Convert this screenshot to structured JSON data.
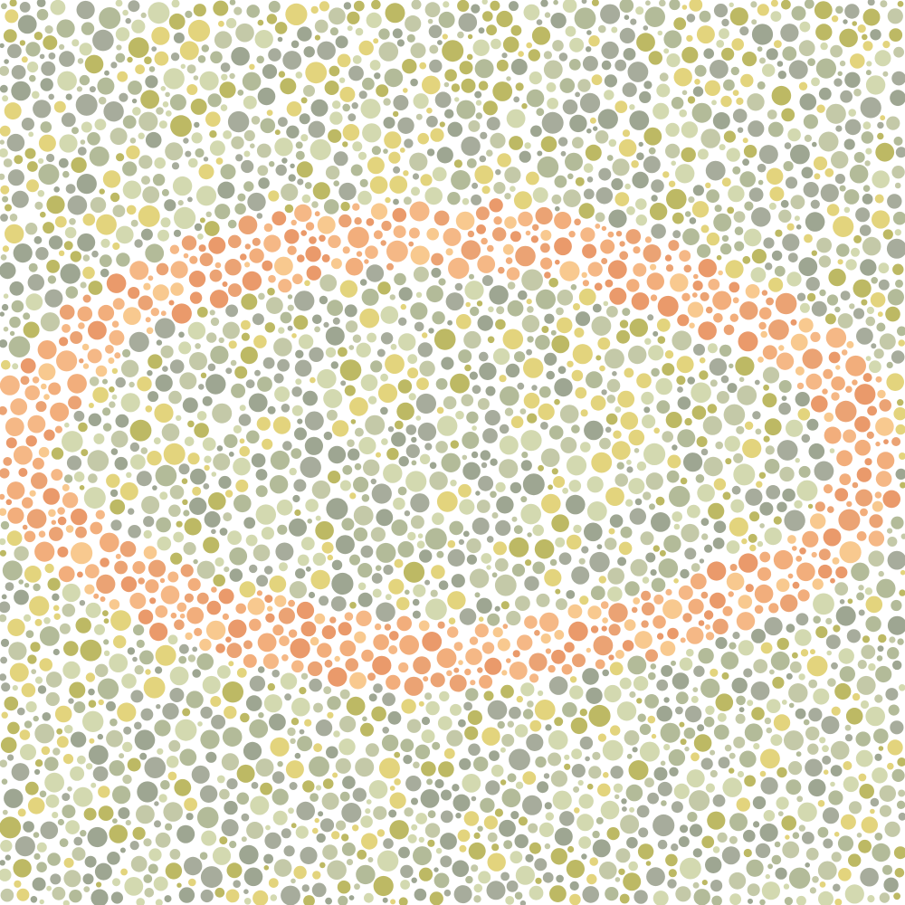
{
  "plate": {
    "type": "color-vision-test-plate",
    "figure": "closed-loop-path",
    "background_palette": [
      "#9ea692",
      "#b3bb99",
      "#bdb964",
      "#d3d9b0",
      "#e3d47d",
      "#a7ac9c",
      "#c4c9a8"
    ],
    "figure_palette": [
      "#eba374",
      "#f5b886",
      "#f8c98f",
      "#f2ae7c",
      "#ea9a6b"
    ],
    "page_background": "#ffffff"
  }
}
